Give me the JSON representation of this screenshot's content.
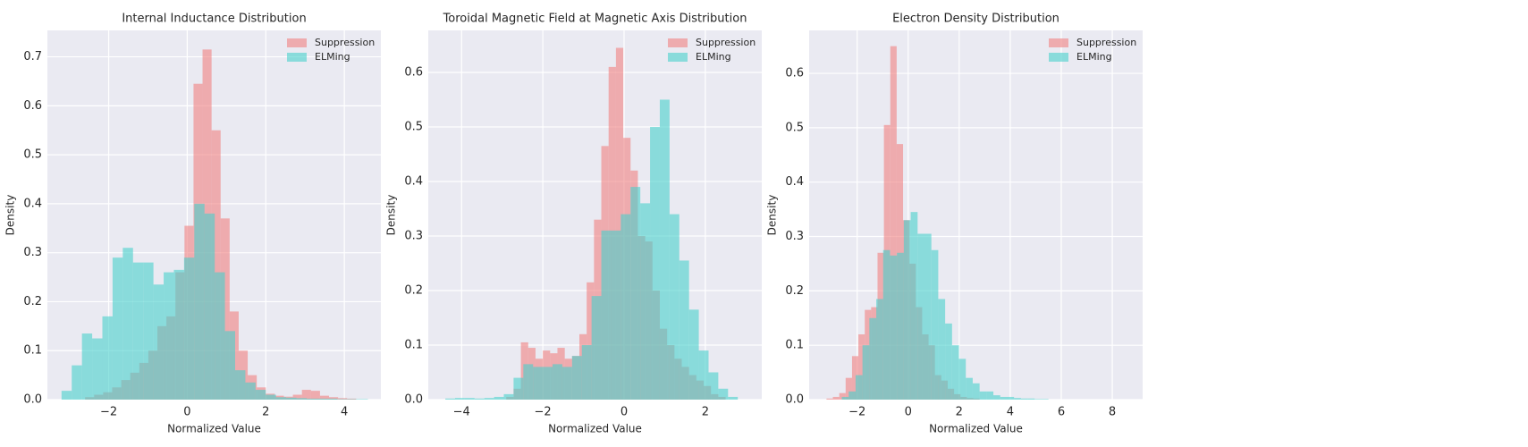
{
  "chart_data": [
    {
      "type": "histogram",
      "title": "Internal Inductance Distribution",
      "xlabel": "Normalized Value",
      "ylabel": "Density",
      "xlim": [
        -3.56,
        4.93
      ],
      "ylim": [
        0,
        0.754
      ],
      "xticks": [
        {
          "value": -2,
          "label": "−2"
        },
        0,
        2,
        4
      ],
      "yticks": [
        {
          "value": 0,
          "label": "0.0"
        },
        0.1,
        0.2,
        0.3,
        0.4,
        0.5,
        0.6,
        0.7
      ],
      "grid": true,
      "legend": "upper right",
      "series": [
        {
          "name": "Suppression",
          "color": "#f08080",
          "bins": [
            -2.6,
            -2.37,
            -2.14,
            -1.91,
            -1.68,
            -1.45,
            -1.22,
            -0.99,
            -0.76,
            -0.53,
            -0.3,
            -0.07,
            0.16,
            0.39,
            0.62,
            0.85,
            1.08,
            1.31,
            1.54,
            1.77,
            2.0,
            2.23,
            2.46,
            2.69,
            2.92,
            3.15,
            3.38,
            3.61,
            3.84,
            4.07,
            4.3
          ],
          "values": [
            0.005,
            0.01,
            0.015,
            0.025,
            0.04,
            0.055,
            0.075,
            0.1,
            0.15,
            0.17,
            0.26,
            0.355,
            0.645,
            0.715,
            0.55,
            0.37,
            0.18,
            0.1,
            0.05,
            0.025,
            0.012,
            0.008,
            0.006,
            0.01,
            0.02,
            0.018,
            0.008,
            0.005,
            0.003,
            0.002
          ]
        },
        {
          "name": "ELMing",
          "color": "#48d1cc",
          "bins": [
            -3.2,
            -2.94,
            -2.68,
            -2.42,
            -2.16,
            -1.9,
            -1.64,
            -1.38,
            -1.12,
            -0.86,
            -0.6,
            -0.34,
            -0.08,
            0.18,
            0.44,
            0.7,
            0.96,
            1.22,
            1.48,
            1.74,
            2.0,
            2.26,
            2.52,
            2.78,
            3.04,
            3.3,
            3.56,
            3.82,
            4.08,
            4.34,
            4.6
          ],
          "values": [
            0.018,
            0.07,
            0.135,
            0.125,
            0.17,
            0.29,
            0.31,
            0.28,
            0.28,
            0.235,
            0.26,
            0.265,
            0.29,
            0.4,
            0.38,
            0.26,
            0.14,
            0.06,
            0.035,
            0.02,
            0.01,
            0.005,
            0.004,
            0.003,
            0.002,
            0.002,
            0.002,
            0.001,
            0.001,
            0.001
          ]
        }
      ]
    },
    {
      "type": "histogram",
      "title": "Toroidal Magnetic Field at Magnetic Axis Distribution",
      "xlabel": "Normalized Value",
      "ylabel": "Density",
      "xlim": [
        -4.82,
        3.39
      ],
      "ylim": [
        0,
        0.677
      ],
      "xticks": [
        {
          "value": -4,
          "label": "−4"
        },
        {
          "value": -2,
          "label": "−2"
        },
        0,
        2
      ],
      "yticks": [
        {
          "value": 0,
          "label": "0.0"
        },
        0.1,
        0.2,
        0.3,
        0.4,
        0.5,
        0.6
      ],
      "grid": true,
      "legend": "upper right",
      "series": [
        {
          "name": "Suppression",
          "color": "#f08080",
          "bins": [
            -2.9,
            -2.72,
            -2.54,
            -2.36,
            -2.18,
            -2.0,
            -1.82,
            -1.64,
            -1.46,
            -1.28,
            -1.1,
            -0.92,
            -0.74,
            -0.56,
            -0.38,
            -0.2,
            -0.02,
            0.16,
            0.34,
            0.52,
            0.7,
            0.88,
            1.06,
            1.24,
            1.42,
            1.6,
            1.78,
            1.96,
            2.14,
            2.32,
            2.5
          ],
          "values": [
            0.005,
            0.02,
            0.105,
            0.095,
            0.075,
            0.09,
            0.085,
            0.095,
            0.075,
            0.08,
            0.12,
            0.215,
            0.33,
            0.465,
            0.61,
            0.645,
            0.48,
            0.42,
            0.3,
            0.29,
            0.2,
            0.13,
            0.1,
            0.075,
            0.06,
            0.045,
            0.035,
            0.025,
            0.01,
            0.005
          ]
        },
        {
          "name": "ELMing",
          "color": "#48d1cc",
          "bins": [
            -4.4,
            -4.16,
            -3.92,
            -3.68,
            -3.44,
            -3.2,
            -2.96,
            -2.72,
            -2.48,
            -2.24,
            -2.0,
            -1.76,
            -1.52,
            -1.28,
            -1.04,
            -0.8,
            -0.56,
            -0.32,
            -0.08,
            0.16,
            0.4,
            0.64,
            0.88,
            1.12,
            1.36,
            1.6,
            1.84,
            2.08,
            2.32,
            2.56,
            2.8
          ],
          "values": [
            0.002,
            0.003,
            0.003,
            0.002,
            0.003,
            0.005,
            0.01,
            0.04,
            0.065,
            0.06,
            0.06,
            0.065,
            0.06,
            0.08,
            0.1,
            0.19,
            0.31,
            0.31,
            0.34,
            0.39,
            0.36,
            0.5,
            0.55,
            0.34,
            0.255,
            0.165,
            0.09,
            0.05,
            0.02,
            0.005
          ]
        }
      ]
    },
    {
      "type": "histogram",
      "title": "Electron Density Distribution",
      "xlabel": "Normalized Value",
      "ylabel": "Density",
      "xlim": [
        -3.88,
        9.19
      ],
      "ylim": [
        0,
        0.679
      ],
      "xticks": [
        {
          "value": -2,
          "label": "−2"
        },
        0,
        2,
        4,
        6,
        8
      ],
      "yticks": [
        {
          "value": 0,
          "label": "0.0"
        },
        0.1,
        0.2,
        0.3,
        0.4,
        0.5,
        0.6
      ],
      "grid": true,
      "legend": "upper right",
      "series": [
        {
          "name": "Suppression",
          "color": "#f08080",
          "bins": [
            -3.2,
            -2.95,
            -2.7,
            -2.45,
            -2.2,
            -1.95,
            -1.7,
            -1.45,
            -1.2,
            -0.95,
            -0.7,
            -0.45,
            -0.2,
            0.05,
            0.3,
            0.55,
            0.8,
            1.05,
            1.3,
            1.55,
            1.8,
            2.05,
            2.3,
            2.55,
            2.8
          ],
          "values": [
            0.002,
            0.005,
            0.012,
            0.04,
            0.08,
            0.12,
            0.165,
            0.17,
            0.27,
            0.505,
            0.65,
            0.47,
            0.33,
            0.25,
            0.17,
            0.12,
            0.1,
            0.045,
            0.035,
            0.02,
            0.01,
            0.005,
            0.003,
            0.002
          ]
        },
        {
          "name": "ELMing",
          "color": "#48d1cc",
          "bins": [
            -2.6,
            -2.33,
            -2.06,
            -1.79,
            -1.52,
            -1.25,
            -0.98,
            -0.71,
            -0.44,
            -0.17,
            0.1,
            0.37,
            0.64,
            0.91,
            1.18,
            1.45,
            1.72,
            1.99,
            2.26,
            2.53,
            2.8,
            3.07,
            3.34,
            3.61,
            3.88,
            4.15,
            4.42,
            4.69,
            4.96,
            5.23,
            5.5
          ],
          "values": [
            0.005,
            0.015,
            0.045,
            0.1,
            0.15,
            0.185,
            0.275,
            0.265,
            0.27,
            0.33,
            0.345,
            0.305,
            0.305,
            0.275,
            0.185,
            0.14,
            0.1,
            0.075,
            0.04,
            0.03,
            0.015,
            0.015,
            0.008,
            0.005,
            0.005,
            0.003,
            0.002,
            0.002,
            0.001,
            0.001
          ]
        }
      ]
    }
  ]
}
